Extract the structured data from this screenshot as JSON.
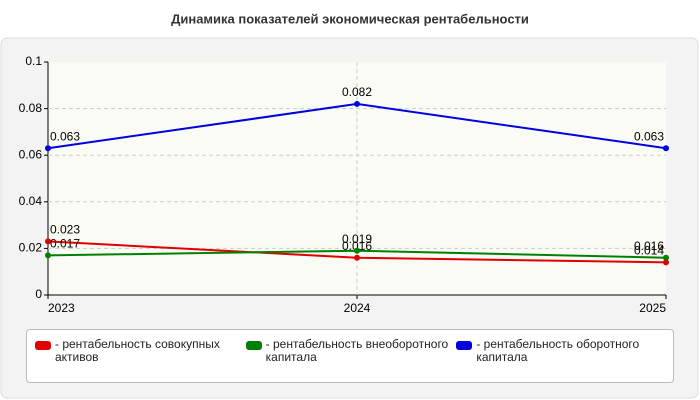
{
  "chart_data": {
    "type": "line",
    "title": "Динамика показателей экономическая рентабельности",
    "categories": [
      "2023",
      "2024",
      "2025"
    ],
    "series": [
      {
        "name": "- рентабельность совокупных активов",
        "color": "#e00000",
        "values": [
          0.023,
          0.016,
          0.014
        ]
      },
      {
        "name": "- рентабельность внеоборотного капитала",
        "color": "#008000",
        "values": [
          0.017,
          0.019,
          0.016
        ]
      },
      {
        "name": "- рентабельность оборотного капитала",
        "color": "#0000e0",
        "values": [
          0.063,
          0.082,
          0.063
        ]
      }
    ],
    "ylim": [
      0,
      0.1
    ],
    "yticks": [
      0,
      0.02,
      0.04,
      0.06,
      0.08,
      0.1
    ],
    "grid": true,
    "legend": "bottom"
  }
}
